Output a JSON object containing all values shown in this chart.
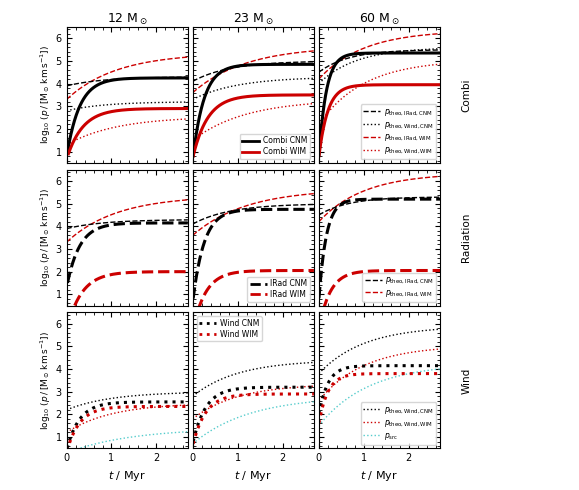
{
  "col_titles": [
    "12 M$_\\odot$",
    "23 M$_\\odot$",
    "60 M$_\\odot$"
  ],
  "row_labels": [
    "Combi",
    "Radiation",
    "Wind"
  ],
  "xlabel": "$t$ / Myr",
  "ylabels": [
    "$\\log_{10}\\,(p\\,/\\,[{\\rm M}_\\odot\\,{\\rm km\\,s}^{-1}])$",
    "$\\log_{10}\\,(p\\,/\\,[{\\rm M}_\\odot\\,{\\rm km\\,s}^{-1}])$",
    "$\\log_{10}\\,(p\\,/\\,[{\\rm M}_\\odot\\,{\\rm km\\,s}^{-1}])$"
  ],
  "xlim": [
    0,
    2.7
  ],
  "ylim": [
    0.5,
    6.5
  ],
  "yticks": [
    1,
    2,
    3,
    4,
    5,
    6
  ],
  "xticks": [
    0,
    1,
    2
  ],
  "color_cnm": "#000000",
  "color_wim": "#cc0000",
  "color_cyan": "#55cccc",
  "figsize": [
    5.79,
    4.9
  ],
  "dpi": 100
}
